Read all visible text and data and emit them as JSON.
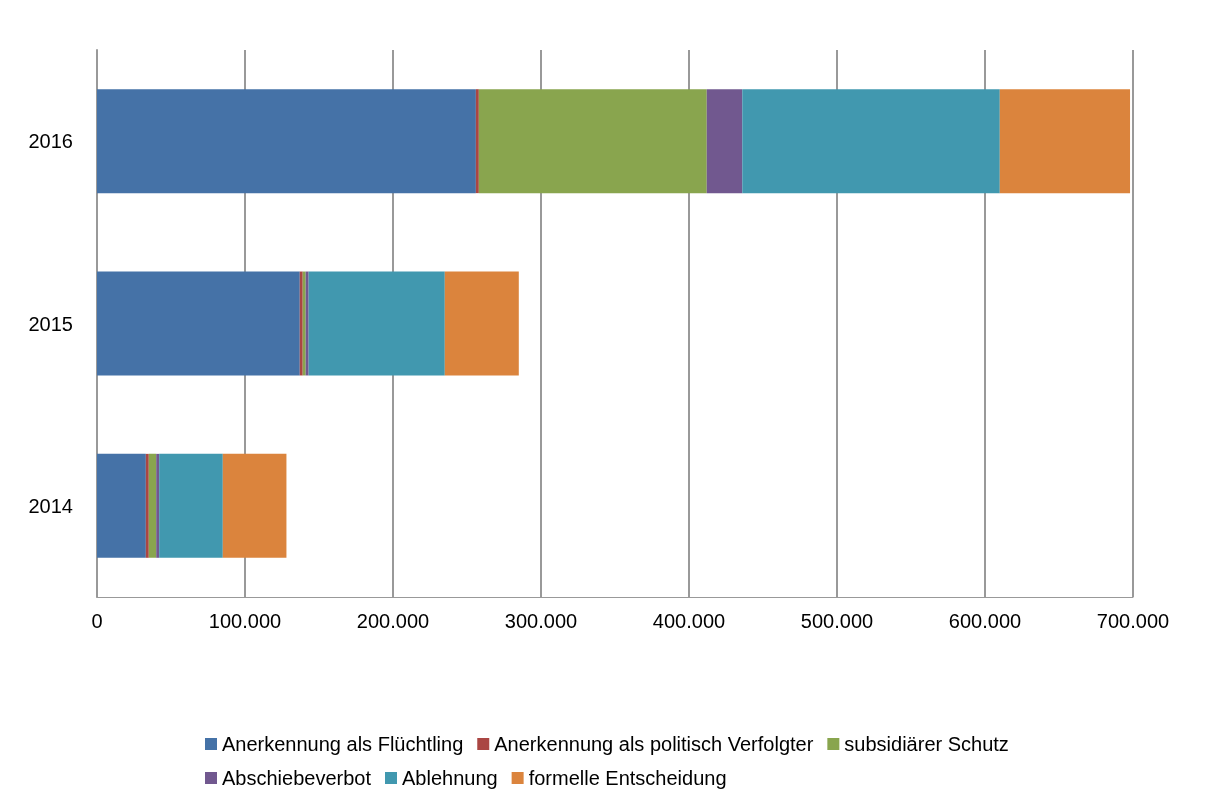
{
  "chart_data": {
    "type": "bar",
    "orientation": "horizontal",
    "stacked": true,
    "categories": [
      "2016",
      "2015",
      "2014"
    ],
    "series": [
      {
        "name": "Anerkennung als Flüchtling",
        "color": "#4572a7",
        "values": [
          256000,
          137000,
          33000
        ]
      },
      {
        "name": "Anerkennung als politisch Verfolgter",
        "color": "#aa4643",
        "values": [
          2000,
          2000,
          2000
        ]
      },
      {
        "name": "subsidiärer Schutz",
        "color": "#89a54e",
        "values": [
          154000,
          2000,
          5000
        ]
      },
      {
        "name": "Abschiebeverbot",
        "color": "#71588f",
        "values": [
          24000,
          2000,
          2000
        ]
      },
      {
        "name": "Ablehnung",
        "color": "#4198af",
        "values": [
          174000,
          92000,
          43000
        ]
      },
      {
        "name": "formelle Entscheidung",
        "color": "#db843d",
        "values": [
          88000,
          50000,
          43000
        ]
      }
    ],
    "xlim": [
      0,
      700000
    ],
    "xticks": [
      0,
      {
        "value": 100000,
        "label": "100.000"
      },
      {
        "value": 200000,
        "label": "200.000"
      },
      {
        "value": 300000,
        "label": "300.000"
      },
      {
        "value": 400000,
        "label": "400.000"
      },
      {
        "value": 500000,
        "label": "500.000"
      },
      {
        "value": 600000,
        "label": "600.000"
      },
      {
        "value": 700000,
        "label": "700.000"
      }
    ],
    "grid": "x",
    "legend": "bottom"
  }
}
